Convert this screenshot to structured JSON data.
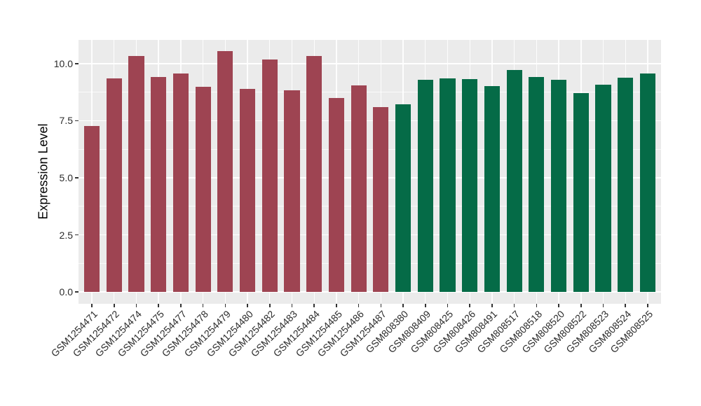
{
  "chart_data": {
    "type": "bar",
    "title": "",
    "xlabel": "",
    "ylabel": "Expression Level",
    "ylim": [
      -0.52,
      11.04
    ],
    "yticks": [
      0,
      2.5,
      5,
      7.5,
      10
    ],
    "ytick_labels": [
      "0.0",
      "2.5",
      "5.0",
      "7.5",
      "10.0"
    ],
    "minor_yticks": [
      1.25,
      3.75,
      6.25,
      8.75
    ],
    "grid": "on",
    "legend_position": "none",
    "panel_background": "#EBEBEB",
    "grid_color": "#FFFFFF",
    "tick_color": "#333333",
    "axis_text_color": "#2B2B2B",
    "categories": [
      "GSM1254471",
      "GSM1254472",
      "GSM1254474",
      "GSM1254475",
      "GSM1254477",
      "GSM1254478",
      "GSM1254479",
      "GSM1254480",
      "GSM1254482",
      "GSM1254483",
      "GSM1254484",
      "GSM1254485",
      "GSM1254486",
      "GSM1254487",
      "GSM808380",
      "GSM808409",
      "GSM808425",
      "GSM808426",
      "GSM808491",
      "GSM808517",
      "GSM808518",
      "GSM808520",
      "GSM808522",
      "GSM808523",
      "GSM808524",
      "GSM808525"
    ],
    "values": [
      7.28,
      9.35,
      10.33,
      9.43,
      9.57,
      9.0,
      10.54,
      8.88,
      10.18,
      8.84,
      10.33,
      8.48,
      9.05,
      8.09,
      8.23,
      9.3,
      9.36,
      9.33,
      9.01,
      9.72,
      9.42,
      9.3,
      8.71,
      9.08,
      9.39,
      9.58
    ],
    "bar_colors": [
      "#9E4452",
      "#9E4452",
      "#9E4452",
      "#9E4452",
      "#9E4452",
      "#9E4452",
      "#9E4452",
      "#9E4452",
      "#9E4452",
      "#9E4452",
      "#9E4452",
      "#9E4452",
      "#9E4452",
      "#9E4452",
      "#056B47",
      "#056B47",
      "#056B47",
      "#056B47",
      "#056B47",
      "#056B47",
      "#056B47",
      "#056B47",
      "#056B47",
      "#056B47",
      "#056B47",
      "#056B47"
    ],
    "groups": [
      {
        "label_prefix": "GSM1254xxx",
        "color": "#9E4452",
        "count": 14
      },
      {
        "label_prefix": "GSM808xxx",
        "color": "#056B47",
        "count": 12
      }
    ]
  }
}
